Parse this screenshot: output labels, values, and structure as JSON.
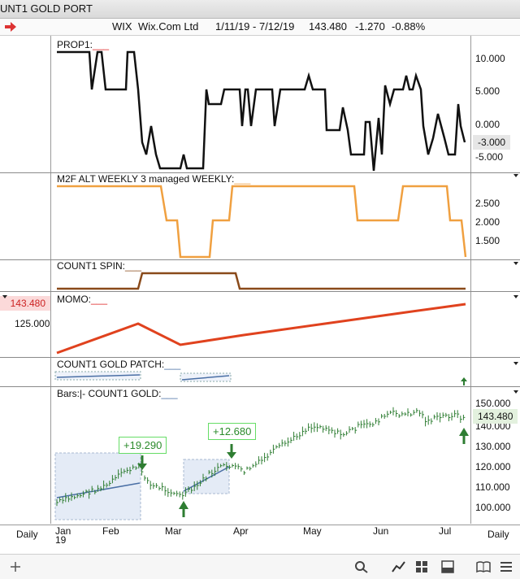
{
  "window": {
    "title": "UNT1 GOLD PORT"
  },
  "quote": {
    "symbol": "WIX",
    "name": "Wix.Com Ltd",
    "range": "1/11/19 - 7/12/19",
    "last": "143.480",
    "change": "-1.270",
    "pct": "-0.88%"
  },
  "panels": {
    "prop1": {
      "title": "PROP1:",
      "underline": "___",
      "ticks": [
        "10.000",
        "5.000",
        "0.000",
        "-5.000"
      ],
      "tag": "-3.000"
    },
    "m2f": {
      "title": "M2F ALT WEEKLY 3 managed WEEKLY:",
      "underline": "___",
      "ticks": [
        "2.500",
        "2.000",
        "1.500"
      ]
    },
    "spin": {
      "title": "COUNT1 SPIN:",
      "underline": "___"
    },
    "momo": {
      "title": "MOMO:",
      "underline": "___",
      "left_tag": "143.480",
      "left_tick": "125.000"
    },
    "patch": {
      "title": "COUNT1 GOLD PATCH:",
      "underline": "___"
    },
    "gold": {
      "title": "Bars:|-   COUNT1 GOLD:",
      "underline": "___",
      "ticks": [
        "150.000",
        "140.000",
        "130.000",
        "120.000",
        "110.000",
        "100.000"
      ],
      "tag": "143.480",
      "callouts": [
        "+19.290",
        "+12.680"
      ]
    }
  },
  "xaxis": {
    "months": [
      "Jan",
      "Feb",
      "Mar",
      "Apr",
      "May",
      "Jun",
      "Jul"
    ],
    "year": "19",
    "left_period": "Daily",
    "right_period": "Daily"
  },
  "colors": {
    "prop1": "#111111",
    "m2f": "#f0a040",
    "spin": "#8a4a1a",
    "momo": "#e0421e",
    "bars": "#2e7d32",
    "accent_red": "#d33"
  },
  "toolbar": {
    "icons": [
      "add-icon",
      "search-icon",
      "line-chart-icon",
      "grid-icon",
      "panel-icon",
      "book-icon",
      "menu-icon"
    ]
  }
}
